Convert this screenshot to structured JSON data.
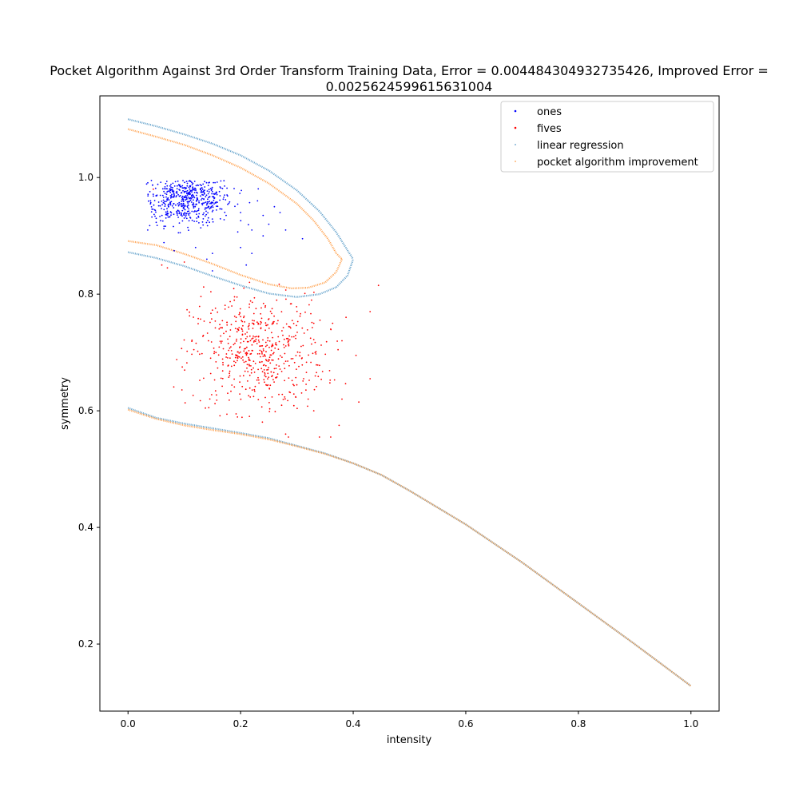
{
  "chart_data": {
    "type": "scatter",
    "title_line1": "Pocket Algorithm Against 3rd Order Transform Training Data, Error = 0.004484304932735426, Improved Error =",
    "title_line2": "0.0025624599615631004",
    "xlabel": "intensity",
    "ylabel": "symmetry",
    "xlim": [
      -0.05,
      1.05
    ],
    "ylim": [
      0.085,
      1.14
    ],
    "xticks": [
      0.0,
      0.2,
      0.4,
      0.6,
      0.8,
      1.0
    ],
    "xtick_labels": [
      "0.0",
      "0.2",
      "0.4",
      "0.6",
      "0.8",
      "1.0"
    ],
    "yticks": [
      0.2,
      0.4,
      0.6,
      0.8,
      1.0
    ],
    "ytick_labels": [
      "0.2",
      "0.4",
      "0.6",
      "0.8",
      "1.0"
    ],
    "grid": false,
    "legend_position": "top-right",
    "series": [
      {
        "name": "ones",
        "kind": "points",
        "color": "#0000ff",
        "cluster": {
          "count": 520,
          "center": [
            0.105,
            0.963
          ],
          "spread": [
            0.04,
            0.022
          ],
          "x_range": [
            0.03,
            0.32
          ],
          "y_range": [
            0.84,
            0.995
          ]
        },
        "points": [
          [
            0.04,
            0.96
          ],
          [
            0.035,
            0.91
          ],
          [
            0.05,
            0.93
          ],
          [
            0.12,
            0.88
          ],
          [
            0.15,
            0.87
          ],
          [
            0.15,
            0.84
          ],
          [
            0.14,
            0.86
          ],
          [
            0.2,
            0.88
          ],
          [
            0.21,
            0.85
          ],
          [
            0.22,
            0.87
          ],
          [
            0.22,
            0.91
          ],
          [
            0.24,
            0.9
          ],
          [
            0.25,
            0.92
          ],
          [
            0.27,
            0.94
          ],
          [
            0.28,
            0.91
          ],
          [
            0.31,
            0.895
          ],
          [
            0.26,
            0.95
          ],
          [
            0.23,
            0.96
          ],
          [
            0.24,
            0.935
          ],
          [
            0.2,
            0.94
          ]
        ]
      },
      {
        "name": "fives",
        "kind": "points",
        "color": "#ff0000",
        "cluster": {
          "count": 560,
          "center": [
            0.23,
            0.7
          ],
          "spread": [
            0.06,
            0.05
          ],
          "x_range": [
            0.08,
            0.42
          ],
          "y_range": [
            0.57,
            0.86
          ]
        },
        "points": [
          [
            0.045,
            0.98
          ],
          [
            0.06,
            0.85
          ],
          [
            0.07,
            0.845
          ],
          [
            0.1,
            0.855
          ],
          [
            0.36,
            0.555
          ],
          [
            0.34,
            0.555
          ],
          [
            0.28,
            0.56
          ],
          [
            0.285,
            0.555
          ],
          [
            0.33,
            0.6
          ],
          [
            0.375,
            0.575
          ],
          [
            0.38,
            0.62
          ],
          [
            0.43,
            0.77
          ],
          [
            0.445,
            0.815
          ],
          [
            0.43,
            0.655
          ],
          [
            0.405,
            0.695
          ],
          [
            0.38,
            0.72
          ],
          [
            0.36,
            0.74
          ],
          [
            0.33,
            0.75
          ],
          [
            0.41,
            0.615
          ],
          [
            0.32,
            0.62
          ]
        ]
      },
      {
        "name": "linear regression",
        "kind": "curve",
        "color": "#5d9ec9",
        "closed_top": [
          [
            0.0,
            1.1
          ],
          [
            0.05,
            1.088
          ],
          [
            0.1,
            1.074
          ],
          [
            0.15,
            1.058
          ],
          [
            0.2,
            1.038
          ],
          [
            0.25,
            1.012
          ],
          [
            0.3,
            0.978
          ],
          [
            0.34,
            0.942
          ],
          [
            0.37,
            0.906
          ],
          [
            0.39,
            0.875
          ],
          [
            0.4,
            0.86
          ]
        ],
        "closed_bottom": [
          [
            0.0,
            0.872
          ],
          [
            0.05,
            0.862
          ],
          [
            0.1,
            0.848
          ],
          [
            0.15,
            0.831
          ],
          [
            0.2,
            0.815
          ],
          [
            0.25,
            0.801
          ],
          [
            0.3,
            0.795
          ],
          [
            0.34,
            0.8
          ],
          [
            0.37,
            0.812
          ],
          [
            0.39,
            0.832
          ],
          [
            0.4,
            0.86
          ]
        ],
        "lower_branch": [
          [
            0.0,
            0.605
          ],
          [
            0.05,
            0.588
          ],
          [
            0.1,
            0.578
          ],
          [
            0.15,
            0.57
          ],
          [
            0.2,
            0.562
          ],
          [
            0.25,
            0.553
          ],
          [
            0.3,
            0.54
          ],
          [
            0.35,
            0.527
          ],
          [
            0.4,
            0.51
          ],
          [
            0.45,
            0.49
          ],
          [
            0.5,
            0.463
          ],
          [
            0.6,
            0.405
          ],
          [
            0.7,
            0.34
          ],
          [
            0.8,
            0.27
          ],
          [
            0.9,
            0.2
          ],
          [
            1.0,
            0.128
          ]
        ]
      },
      {
        "name": "pocket algorithm improvement",
        "kind": "curve",
        "color": "#ff9f4a",
        "closed_top": [
          [
            0.0,
            1.083
          ],
          [
            0.05,
            1.07
          ],
          [
            0.1,
            1.056
          ],
          [
            0.15,
            1.038
          ],
          [
            0.2,
            1.017
          ],
          [
            0.25,
            0.99
          ],
          [
            0.3,
            0.955
          ],
          [
            0.33,
            0.926
          ],
          [
            0.355,
            0.895
          ],
          [
            0.37,
            0.87
          ],
          [
            0.38,
            0.86
          ]
        ],
        "closed_bottom": [
          [
            0.0,
            0.891
          ],
          [
            0.05,
            0.884
          ],
          [
            0.1,
            0.869
          ],
          [
            0.15,
            0.852
          ],
          [
            0.2,
            0.833
          ],
          [
            0.25,
            0.817
          ],
          [
            0.29,
            0.81
          ],
          [
            0.32,
            0.811
          ],
          [
            0.35,
            0.82
          ],
          [
            0.37,
            0.838
          ],
          [
            0.38,
            0.86
          ]
        ],
        "lower_branch": [
          [
            0.0,
            0.602
          ],
          [
            0.05,
            0.586
          ],
          [
            0.1,
            0.575
          ],
          [
            0.15,
            0.567
          ],
          [
            0.2,
            0.56
          ],
          [
            0.25,
            0.551
          ],
          [
            0.3,
            0.539
          ],
          [
            0.35,
            0.526
          ],
          [
            0.4,
            0.51
          ],
          [
            0.45,
            0.49
          ],
          [
            0.5,
            0.463
          ],
          [
            0.6,
            0.405
          ],
          [
            0.7,
            0.34
          ],
          [
            0.8,
            0.27
          ],
          [
            0.9,
            0.2
          ],
          [
            1.0,
            0.128
          ]
        ]
      }
    ]
  }
}
